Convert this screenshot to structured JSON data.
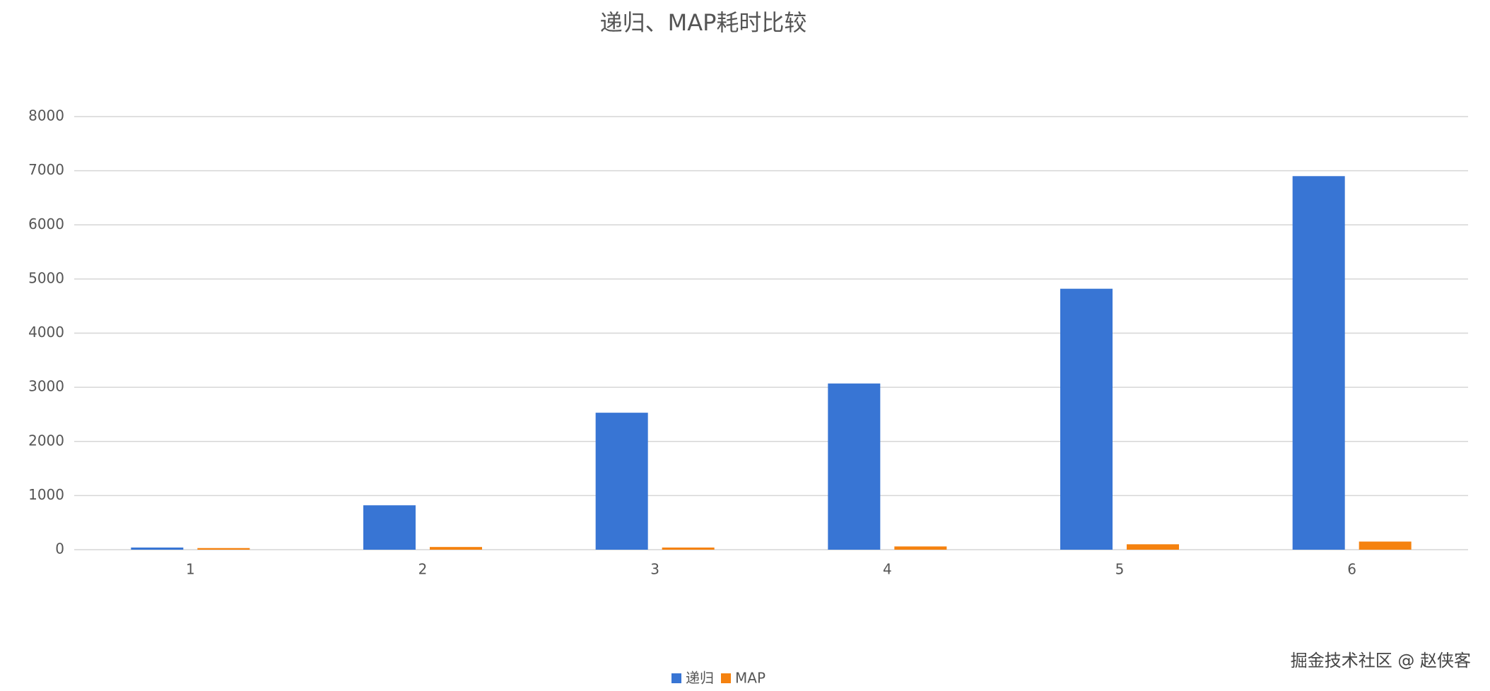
{
  "chart_data": {
    "type": "bar",
    "title": "递归、MAP耗时比较",
    "categories": [
      "1",
      "2",
      "3",
      "4",
      "5",
      "6"
    ],
    "series": [
      {
        "name": "递归",
        "color": "#3875d4",
        "values": [
          40,
          820,
          2530,
          3070,
          4820,
          6900
        ]
      },
      {
        "name": "MAP",
        "color": "#f5820f",
        "values": [
          30,
          50,
          40,
          60,
          100,
          150
        ]
      }
    ],
    "ylim": [
      0,
      8000
    ],
    "yticks": [
      0,
      1000,
      2000,
      3000,
      4000,
      5000,
      6000,
      7000,
      8000
    ],
    "grid": true,
    "legend": "bottom",
    "watermark": "掘金技术社区 @ 赵侠客"
  }
}
